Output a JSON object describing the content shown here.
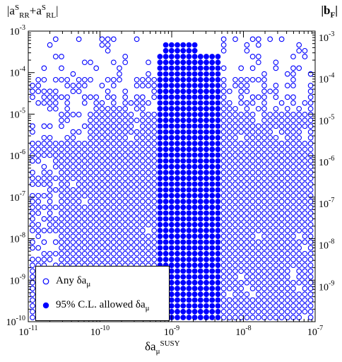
{
  "chart_data": {
    "type": "scatter",
    "x_scale": "log",
    "y_scale": "log",
    "xlim": [
      1e-11,
      1e-07
    ],
    "ylim": [
      1e-10,
      0.001
    ],
    "ylim_right": [
      1e-10,
      0.001
    ],
    "xlabel": {
      "base": "δa",
      "sub": "μ",
      "sup": "SUSY"
    },
    "ylabel_left": {
      "parts": [
        "|a",
        "S",
        "RR",
        "+a",
        "S",
        "RL",
        "|"
      ]
    },
    "ylabel_right": {
      "base": "|b",
      "sub": "F",
      "close": "|"
    },
    "x_ticks": [
      {
        "exp": "-11",
        "value": 1e-11
      },
      {
        "exp": "-10",
        "value": 1e-10
      },
      {
        "exp": "-9",
        "value": 1e-09
      },
      {
        "exp": "-8",
        "value": 1e-08
      },
      {
        "exp": "-7",
        "value": 1e-07
      }
    ],
    "y_ticks_left": [
      {
        "exp": "-10",
        "value": 1e-10
      },
      {
        "exp": "-9",
        "value": 1e-09
      },
      {
        "exp": "-8",
        "value": 1e-08
      },
      {
        "exp": "-7",
        "value": 1e-07
      },
      {
        "exp": "-6",
        "value": 1e-06
      },
      {
        "exp": "-5",
        "value": 1e-05
      },
      {
        "exp": "-4",
        "value": 0.0001
      },
      {
        "exp": "-3",
        "value": 0.001
      }
    ],
    "y_ticks_right": [
      {
        "exp": "-9",
        "value": 1e-09
      },
      {
        "exp": "-8",
        "value": 1e-08
      },
      {
        "exp": "-7",
        "value": 1e-07
      },
      {
        "exp": "-6",
        "value": 1e-06
      },
      {
        "exp": "-5",
        "value": 1e-05
      },
      {
        "exp": "-4",
        "value": 0.0001
      },
      {
        "exp": "-3",
        "value": 0.001
      }
    ],
    "series": [
      {
        "name": "Any δa_μ",
        "marker": "open-circle",
        "color": "#0000ff",
        "points_description": "dense grid covering x 1e-11..1e-7, y up to ~2e-4 (sparser at top and left)"
      },
      {
        "name": "95% C.L. allowed δa_μ",
        "marker": "filled-circle",
        "color": "#0000ff",
        "allowed_x_range": [
          6e-10,
          4.5e-09
        ],
        "allowed_y_range": [
          1e-10,
          0.0006
        ]
      }
    ],
    "legend_placement": "bottom-left",
    "grid": false
  },
  "legend": {
    "item1": {
      "base": "Any δa",
      "sub": "μ"
    },
    "item2": {
      "base": "95% C.L. allowed δa",
      "sub": "μ"
    }
  }
}
